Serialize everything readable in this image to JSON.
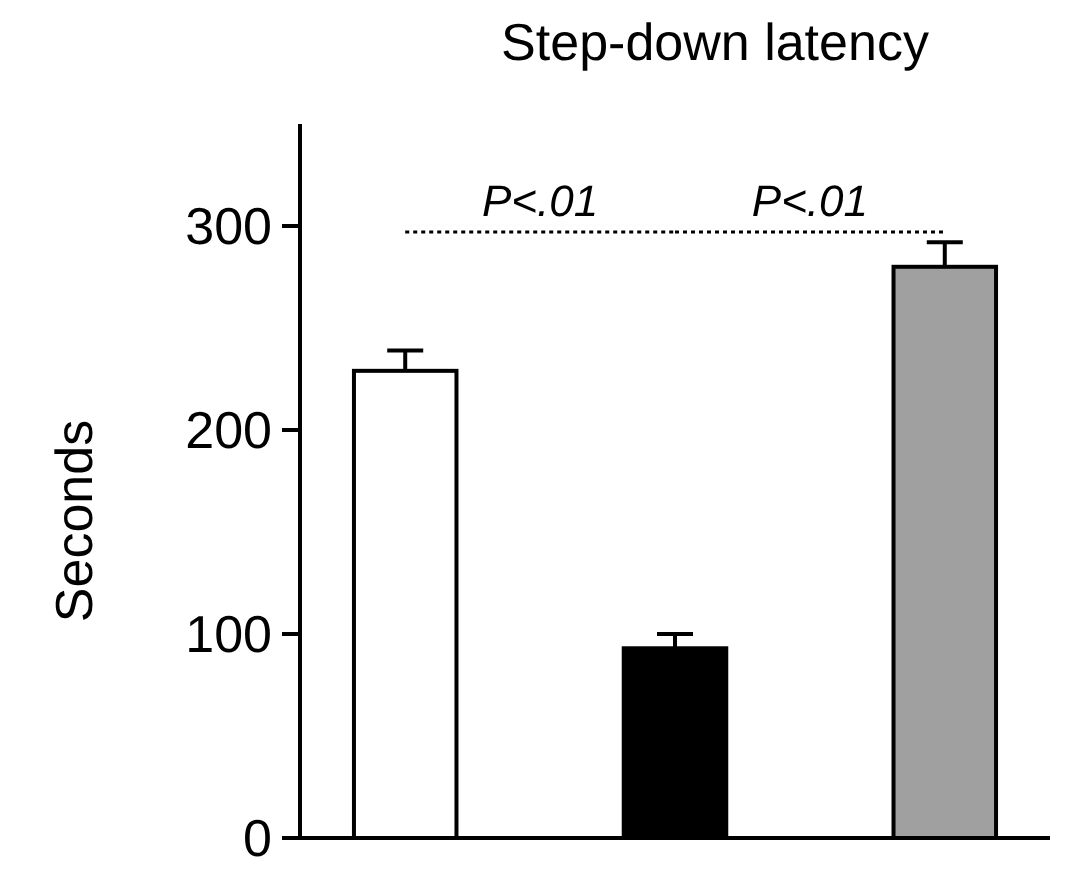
{
  "chart_data": {
    "type": "bar",
    "title": "Step-down latency",
    "ylabel": "Seconds",
    "categories": [
      null,
      null,
      null
    ],
    "values": [
      229,
      93,
      280
    ],
    "colors": [
      "#ffffff",
      "#000000",
      "#a0a0a0"
    ],
    "errors": [
      10,
      7,
      12
    ],
    "ylim": [
      0,
      350
    ],
    "yticks": [
      0,
      100,
      200,
      300
    ],
    "grid": false,
    "annotations": [
      "P<.01",
      "P<.01"
    ]
  }
}
